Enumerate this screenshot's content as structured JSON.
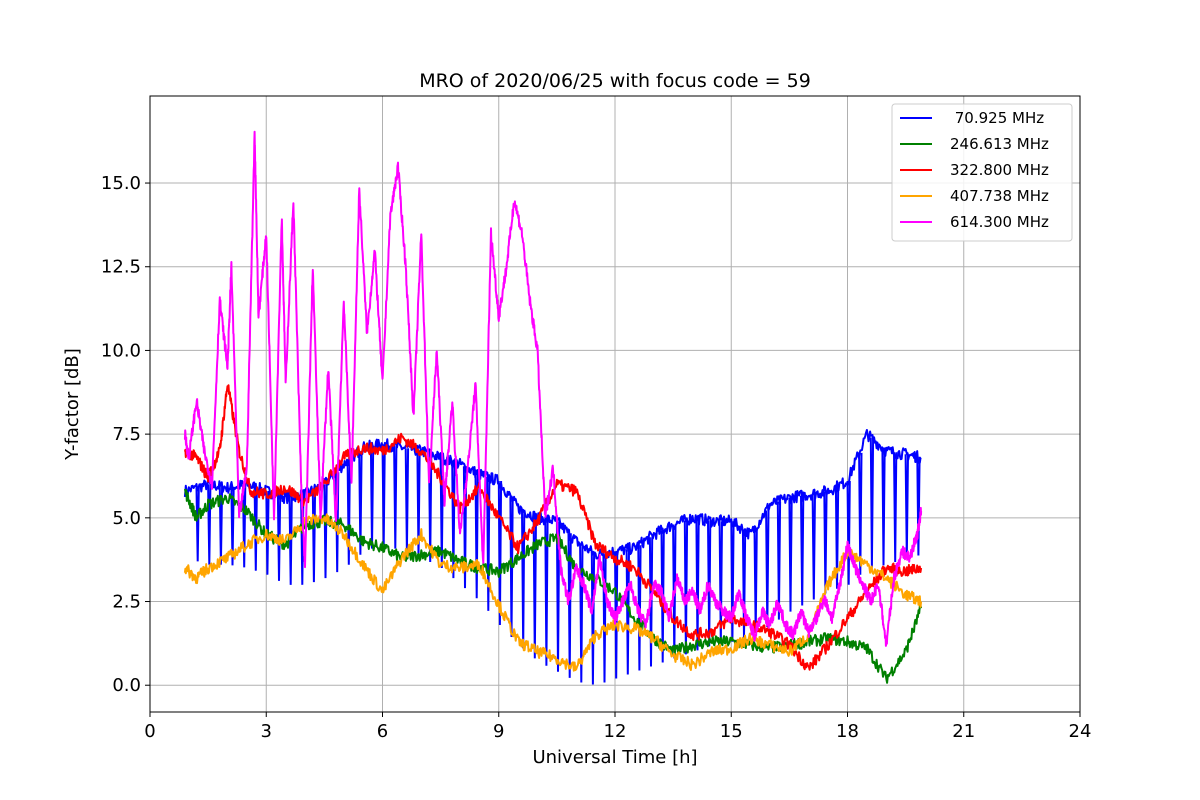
{
  "chart_data": {
    "type": "line",
    "title": "MRO of 2020/06/25 with focus code = 59",
    "xlabel": "Universal Time [h]",
    "ylabel": "Y-factor [dB]",
    "xlim": [
      0,
      24
    ],
    "ylim": [
      -0.8,
      17.6
    ],
    "xticks": [
      0,
      3,
      6,
      9,
      12,
      15,
      18,
      21,
      24
    ],
    "xtick_labels": [
      "0",
      "3",
      "6",
      "9",
      "12",
      "15",
      "18",
      "21",
      "24"
    ],
    "yticks": [
      0,
      2.5,
      5,
      7.5,
      10,
      12.5,
      15
    ],
    "ytick_labels": [
      "0.0",
      "2.5",
      "5.0",
      "7.5",
      "10.0",
      "12.5",
      "15.0"
    ],
    "grid": true,
    "legend_position": "top-right",
    "series": [
      {
        "name": " 70.925 MHz",
        "color": "#0000ff",
        "x": [
          0.9,
          1.5,
          2.0,
          2.5,
          3.0,
          3.5,
          4.0,
          4.5,
          5.0,
          5.5,
          6.0,
          6.5,
          7.0,
          7.5,
          8.0,
          8.5,
          9.0,
          9.5,
          10.0,
          10.5,
          11.0,
          11.5,
          12.0,
          12.5,
          13.0,
          13.5,
          14.0,
          14.5,
          15.0,
          15.5,
          16.0,
          16.5,
          17.0,
          17.5,
          18.0,
          18.5,
          19.0,
          19.5,
          19.9
        ],
        "y": [
          5.8,
          6.0,
          5.9,
          6.0,
          5.8,
          5.6,
          5.7,
          6.0,
          6.6,
          7.1,
          7.2,
          7.1,
          7.0,
          6.8,
          6.6,
          6.3,
          6.1,
          5.3,
          5.0,
          4.9,
          4.3,
          3.9,
          4.0,
          4.1,
          4.5,
          4.8,
          5.0,
          4.9,
          4.9,
          4.5,
          5.4,
          5.6,
          5.7,
          5.8,
          6.1,
          7.5,
          7.0,
          6.9,
          6.8
        ],
        "low": [
          3.8,
          3.6,
          3.6,
          3.5,
          3.3,
          3.0,
          3.0,
          3.2,
          3.5,
          4.0,
          4.2,
          4.0,
          3.8,
          3.5,
          3.0,
          2.5,
          1.8,
          1.2,
          0.7,
          0.4,
          0.1,
          0.0,
          0.2,
          0.4,
          0.6,
          0.8,
          1.0,
          1.2,
          1.3,
          1.5,
          1.8,
          2.2,
          2.5,
          2.8,
          3.0,
          3.5,
          3.6,
          3.8,
          3.9
        ]
      },
      {
        "name": "246.613 MHz",
        "color": "#008000",
        "x": [
          0.9,
          1.2,
          1.5,
          2.0,
          2.5,
          3.0,
          3.5,
          4.0,
          4.5,
          5.0,
          5.5,
          6.0,
          6.5,
          7.0,
          7.5,
          8.0,
          8.5,
          9.0,
          9.5,
          10.0,
          10.5,
          11.0,
          11.5,
          12.0,
          12.5,
          13.0,
          13.5,
          14.0,
          14.5,
          15.0,
          15.5,
          16.0,
          16.5,
          17.0,
          17.5,
          18.0,
          18.5,
          19.0,
          19.5,
          19.9
        ],
        "y": [
          5.8,
          5.0,
          5.4,
          5.6,
          5.2,
          4.5,
          4.2,
          4.8,
          4.9,
          4.8,
          4.3,
          4.1,
          3.8,
          3.9,
          4.0,
          3.7,
          3.5,
          3.4,
          3.8,
          4.2,
          4.4,
          3.5,
          3.2,
          2.8,
          2.0,
          1.4,
          1.0,
          1.2,
          1.3,
          1.3,
          1.2,
          1.1,
          1.2,
          1.3,
          1.4,
          1.3,
          1.1,
          0.2,
          1.0,
          2.3
        ]
      },
      {
        "name": "322.800 MHz",
        "color": "#ff0000",
        "x": [
          0.9,
          1.2,
          1.5,
          1.8,
          2.0,
          2.3,
          2.6,
          3.0,
          3.5,
          4.0,
          4.5,
          5.0,
          5.5,
          6.0,
          6.5,
          7.0,
          7.5,
          8.0,
          8.5,
          9.0,
          9.5,
          10.0,
          10.5,
          11.0,
          11.5,
          12.0,
          12.5,
          13.0,
          13.5,
          14.0,
          14.5,
          15.0,
          15.5,
          16.0,
          16.5,
          17.0,
          17.5,
          18.0,
          18.5,
          19.0,
          19.5,
          19.9
        ],
        "y": [
          7.0,
          6.8,
          6.2,
          7.0,
          9.0,
          7.0,
          5.8,
          5.7,
          5.9,
          5.5,
          6.0,
          6.8,
          7.1,
          7.0,
          7.4,
          7.0,
          6.2,
          5.3,
          5.9,
          5.0,
          4.1,
          4.9,
          6.0,
          5.8,
          4.2,
          3.8,
          3.5,
          2.8,
          2.0,
          1.5,
          1.6,
          2.0,
          1.8,
          1.6,
          1.2,
          0.5,
          1.2,
          2.0,
          2.8,
          3.5,
          3.4,
          3.5
        ]
      },
      {
        "name": "407.738 MHz",
        "color": "#ffa500",
        "x": [
          0.9,
          1.2,
          1.5,
          2.0,
          2.5,
          3.0,
          3.5,
          4.0,
          4.5,
          5.0,
          5.5,
          6.0,
          6.5,
          7.0,
          7.5,
          8.0,
          8.5,
          9.0,
          9.5,
          10.0,
          10.5,
          11.0,
          11.5,
          12.0,
          12.5,
          13.0,
          13.5,
          14.0,
          14.5,
          15.0,
          15.5,
          16.0,
          16.5,
          17.0,
          17.5,
          18.0,
          18.5,
          19.0,
          19.5,
          19.9
        ],
        "y": [
          3.5,
          3.2,
          3.5,
          3.8,
          4.2,
          4.5,
          4.3,
          4.9,
          5.0,
          4.5,
          3.6,
          2.8,
          3.8,
          4.5,
          3.6,
          3.5,
          3.6,
          2.4,
          1.3,
          1.0,
          0.8,
          0.5,
          1.5,
          1.8,
          1.7,
          1.4,
          0.9,
          0.6,
          1.0,
          1.1,
          1.4,
          1.2,
          1.0,
          1.5,
          3.0,
          4.0,
          3.6,
          3.2,
          2.7,
          2.5
        ]
      },
      {
        "name": "614.300 MHz",
        "color": "#ff00ff",
        "x": [
          0.9,
          1.0,
          1.2,
          1.4,
          1.6,
          1.8,
          2.0,
          2.1,
          2.3,
          2.5,
          2.7,
          2.8,
          3.0,
          3.2,
          3.4,
          3.5,
          3.7,
          3.9,
          4.0,
          4.2,
          4.4,
          4.6,
          4.8,
          5.0,
          5.2,
          5.4,
          5.6,
          5.8,
          6.0,
          6.2,
          6.4,
          6.6,
          6.8,
          7.0,
          7.2,
          7.4,
          7.6,
          7.8,
          8.0,
          8.2,
          8.4,
          8.6,
          8.8,
          9.0,
          9.2,
          9.4,
          9.6,
          9.8,
          10.0,
          10.2,
          10.4,
          10.6,
          10.8,
          11.0,
          11.2,
          11.4,
          11.6,
          11.8,
          12.0,
          12.2,
          12.4,
          12.6,
          12.8,
          13.0,
          13.2,
          13.4,
          13.6,
          13.8,
          14.0,
          14.2,
          14.4,
          14.6,
          14.8,
          15.0,
          15.2,
          15.4,
          15.6,
          15.8,
          16.0,
          16.2,
          16.4,
          16.6,
          16.8,
          17.0,
          17.2,
          17.4,
          17.6,
          17.8,
          18.0,
          18.2,
          18.4,
          18.6,
          18.8,
          19.0,
          19.2,
          19.4,
          19.6,
          19.8,
          19.9
        ],
        "y": [
          7.5,
          6.8,
          8.5,
          7.0,
          6.0,
          11.5,
          9.5,
          12.5,
          5.0,
          6.5,
          16.5,
          11.0,
          13.5,
          5.0,
          14.0,
          9.0,
          14.5,
          6.0,
          3.5,
          12.5,
          5.0,
          9.5,
          4.8,
          11.5,
          6.0,
          14.8,
          10.5,
          13.0,
          9.0,
          14.0,
          15.5,
          12.5,
          8.0,
          13.5,
          6.0,
          10.0,
          5.5,
          8.5,
          4.5,
          6.5,
          9.0,
          3.5,
          13.5,
          11.0,
          12.5,
          14.5,
          13.5,
          11.5,
          10.0,
          5.0,
          6.5,
          3.5,
          2.5,
          3.5,
          3.0,
          2.2,
          3.8,
          2.5,
          2.0,
          2.5,
          3.0,
          2.2,
          1.8,
          3.0,
          2.8,
          2.0,
          3.2,
          2.5,
          2.8,
          2.2,
          3.0,
          2.5,
          2.2,
          2.0,
          2.8,
          2.0,
          1.5,
          2.2,
          1.8,
          2.5,
          1.8,
          1.5,
          2.2,
          1.6,
          2.0,
          2.6,
          2.0,
          3.0,
          4.2,
          3.5,
          3.0,
          2.5,
          3.0,
          1.2,
          3.2,
          4.0,
          3.8,
          4.5,
          5.2
        ]
      }
    ]
  }
}
